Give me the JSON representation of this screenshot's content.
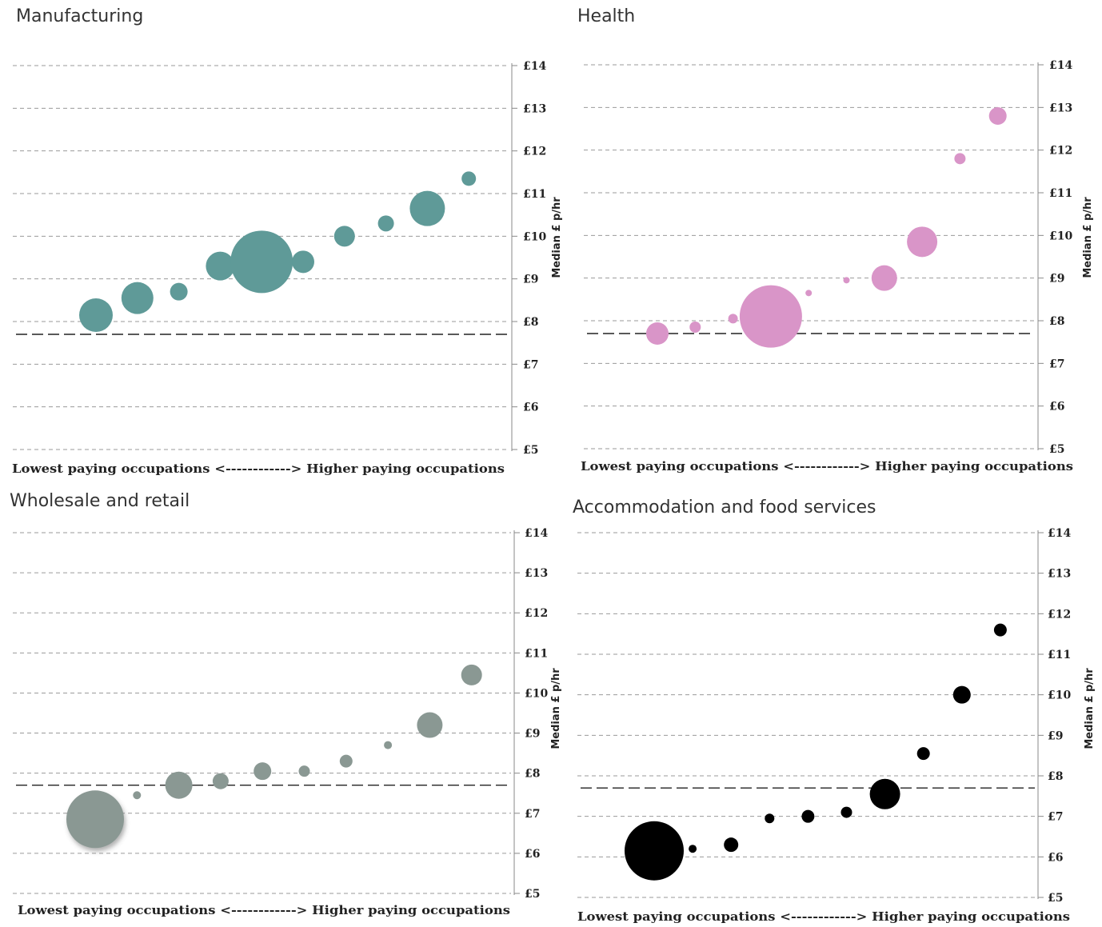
{
  "chart_data": [
    {
      "type": "scatter",
      "title": "Manufacturing",
      "ylabel": "Median £ p/hr",
      "xlabel": "Lowest paying occupations <------------> Higher paying occupations",
      "ylim": [
        5,
        14
      ],
      "yticks": [
        "£5",
        "£6",
        "£7",
        "£8",
        "£9",
        "£10",
        "£11",
        "£12",
        "£13",
        "£14"
      ],
      "reference_line": 7.7,
      "grid": true,
      "color": "#5f9a98",
      "points": [
        {
          "x": 1,
          "y": 8.15,
          "size": 21
        },
        {
          "x": 2,
          "y": 8.55,
          "size": 20
        },
        {
          "x": 3,
          "y": 8.7,
          "size": 11
        },
        {
          "x": 4,
          "y": 9.3,
          "size": 18
        },
        {
          "x": 5,
          "y": 9.4,
          "size": 39
        },
        {
          "x": 6,
          "y": 9.4,
          "size": 14
        },
        {
          "x": 7,
          "y": 10.0,
          "size": 13
        },
        {
          "x": 8,
          "y": 10.3,
          "size": 10
        },
        {
          "x": 9,
          "y": 10.65,
          "size": 22
        },
        {
          "x": 10,
          "y": 11.35,
          "size": 9
        }
      ]
    },
    {
      "type": "scatter",
      "title": "Health",
      "ylabel": "Median £ p/hr",
      "xlabel": "Lowest paying occupations <------------> Higher paying occupations",
      "ylim": [
        5,
        14
      ],
      "yticks": [
        "£5",
        "£6",
        "£7",
        "£8",
        "£9",
        "£10",
        "£11",
        "£12",
        "£13",
        "£14"
      ],
      "reference_line": 7.7,
      "grid": true,
      "color": "#d995c8",
      "points": [
        {
          "x": 1,
          "y": 7.7,
          "size": 14
        },
        {
          "x": 2,
          "y": 7.85,
          "size": 7
        },
        {
          "x": 3,
          "y": 8.05,
          "size": 6
        },
        {
          "x": 4,
          "y": 8.1,
          "size": 39
        },
        {
          "x": 5,
          "y": 8.65,
          "size": 4
        },
        {
          "x": 6,
          "y": 8.95,
          "size": 4
        },
        {
          "x": 7,
          "y": 9.0,
          "size": 16
        },
        {
          "x": 8,
          "y": 9.85,
          "size": 19
        },
        {
          "x": 9,
          "y": 11.8,
          "size": 7
        },
        {
          "x": 10,
          "y": 12.8,
          "size": 11
        }
      ]
    },
    {
      "type": "scatter",
      "title": "Wholesale and retail",
      "ylabel": "Median £ p/hr",
      "xlabel": "Lowest paying occupations <------------> Higher paying occupations",
      "ylim": [
        5,
        14
      ],
      "yticks": [
        "£5",
        "£6",
        "£7",
        "£8",
        "£9",
        "£10",
        "£11",
        "£12",
        "£13",
        "£14"
      ],
      "reference_line": 7.7,
      "grid": true,
      "color": "#8a9893",
      "points": [
        {
          "x": 1,
          "y": 6.85,
          "size": 36
        },
        {
          "x": 2,
          "y": 7.45,
          "size": 5
        },
        {
          "x": 3,
          "y": 7.7,
          "size": 17
        },
        {
          "x": 4,
          "y": 7.8,
          "size": 10
        },
        {
          "x": 5,
          "y": 8.05,
          "size": 11
        },
        {
          "x": 6,
          "y": 8.05,
          "size": 7
        },
        {
          "x": 7,
          "y": 8.3,
          "size": 8
        },
        {
          "x": 8,
          "y": 8.7,
          "size": 5
        },
        {
          "x": 9,
          "y": 9.2,
          "size": 16
        },
        {
          "x": 10,
          "y": 10.45,
          "size": 13
        }
      ]
    },
    {
      "type": "scatter",
      "title": "Accommodation and food services",
      "ylabel": "Median £ p/hr",
      "xlabel": "Lowest paying occupations <------------> Higher paying occupations",
      "ylim": [
        5,
        14
      ],
      "yticks": [
        "£5",
        "£6",
        "£7",
        "£8",
        "£9",
        "£10",
        "£11",
        "£12",
        "£13",
        "£14"
      ],
      "reference_line": 7.7,
      "grid": true,
      "color": "#000000",
      "points": [
        {
          "x": 1,
          "y": 6.15,
          "size": 37
        },
        {
          "x": 2,
          "y": 6.2,
          "size": 5
        },
        {
          "x": 3,
          "y": 6.3,
          "size": 9
        },
        {
          "x": 4,
          "y": 6.95,
          "size": 6
        },
        {
          "x": 5,
          "y": 7.0,
          "size": 8
        },
        {
          "x": 6,
          "y": 7.1,
          "size": 7
        },
        {
          "x": 7,
          "y": 7.55,
          "size": 19
        },
        {
          "x": 8,
          "y": 8.55,
          "size": 8
        },
        {
          "x": 9,
          "y": 10.0,
          "size": 11
        },
        {
          "x": 10,
          "y": 11.6,
          "size": 8
        }
      ]
    }
  ]
}
